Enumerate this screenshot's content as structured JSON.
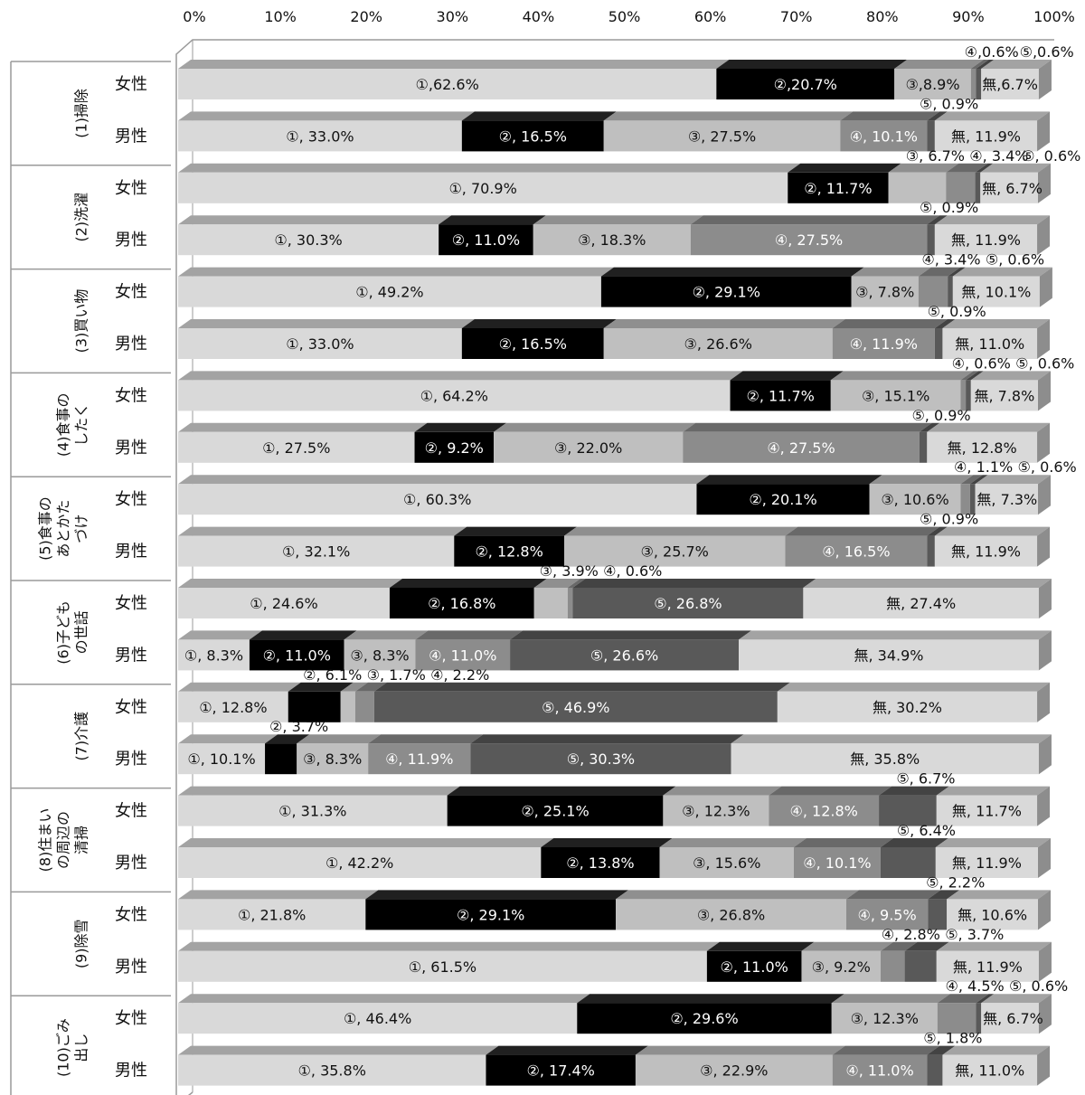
{
  "chart_data": {
    "type": "bar",
    "stacked": "100%",
    "orientation": "horizontal",
    "x_ticks": [
      "0%",
      "10%",
      "20%",
      "30%",
      "40%",
      "50%",
      "60%",
      "70%",
      "80%",
      "90%",
      "100%"
    ],
    "xlim": [
      0,
      100
    ],
    "grid": false,
    "legend": "none",
    "segment_keys": [
      "①",
      "②",
      "③",
      "④",
      "⑤",
      "無"
    ],
    "colors": {
      "①": "#d9d9d9",
      "②": "#000000",
      "③": "#bfbfbf",
      "④": "#8c8c8c",
      "⑤": "#595959",
      "無": "#d9d9d9"
    },
    "categories": [
      {
        "name": "(1)掃除",
        "rows": [
          {
            "gender": "女性",
            "values": [
              62.6,
              20.7,
              8.9,
              0.6,
              0.6,
              6.7
            ],
            "labels": [
              "①,62.6%",
              "②,20.7%",
              "③,8.9%",
              "④,0.6%",
              "⑤,0.6%",
              "無,6.7%"
            ]
          },
          {
            "gender": "男性",
            "values": [
              33.0,
              16.5,
              27.5,
              10.1,
              0.9,
              11.9
            ],
            "labels": [
              "①, 33.0%",
              "②, 16.5%",
              "③, 27.5%",
              "④, 10.1%",
              "⑤, 0.9%",
              "無, 11.9%"
            ]
          }
        ]
      },
      {
        "name": "(2)洗濯",
        "rows": [
          {
            "gender": "女性",
            "values": [
              70.9,
              11.7,
              6.7,
              3.4,
              0.6,
              6.7
            ],
            "labels": [
              "①, 70.9%",
              "②, 11.7%",
              "③, 6.7%",
              "④, 3.4%",
              "⑤, 0.6%",
              "無, 6.7%"
            ]
          },
          {
            "gender": "男性",
            "values": [
              30.3,
              11.0,
              18.3,
              27.5,
              0.9,
              11.9
            ],
            "labels": [
              "①, 30.3%",
              "②, 11.0%",
              "③, 18.3%",
              "④, 27.5%",
              "⑤, 0.9%",
              "無, 11.9%"
            ]
          }
        ]
      },
      {
        "name": "(3)買い物",
        "rows": [
          {
            "gender": "女性",
            "values": [
              49.2,
              29.1,
              7.8,
              3.4,
              0.6,
              10.1
            ],
            "labels": [
              "①, 49.2%",
              "②, 29.1%",
              "③, 7.8%",
              "④, 3.4%",
              "⑤, 0.6%",
              "無, 10.1%"
            ]
          },
          {
            "gender": "男性",
            "values": [
              33.0,
              16.5,
              26.6,
              11.9,
              0.9,
              11.0
            ],
            "labels": [
              "①, 33.0%",
              "②, 16.5%",
              "③, 26.6%",
              "④, 11.9%",
              "⑤, 0.9%",
              "無, 11.0%"
            ]
          }
        ]
      },
      {
        "name": "(4)食事の\nしたく",
        "rows": [
          {
            "gender": "女性",
            "values": [
              64.2,
              11.7,
              15.1,
              0.6,
              0.6,
              7.8
            ],
            "labels": [
              "①, 64.2%",
              "②, 11.7%",
              "③, 15.1%",
              "④, 0.6%",
              "⑤, 0.6%",
              "無, 7.8%"
            ]
          },
          {
            "gender": "男性",
            "values": [
              27.5,
              9.2,
              22.0,
              27.5,
              0.9,
              12.8
            ],
            "labels": [
              "①, 27.5%",
              "②, 9.2%",
              "③, 22.0%",
              "④, 27.5%",
              "⑤, 0.9%",
              "無, 12.8%"
            ]
          }
        ]
      },
      {
        "name": "(5)食事の\nあとかた\nづけ",
        "rows": [
          {
            "gender": "女性",
            "values": [
              60.3,
              20.1,
              10.6,
              1.1,
              0.6,
              7.3
            ],
            "labels": [
              "①, 60.3%",
              "②, 20.1%",
              "③, 10.6%",
              "④, 1.1%",
              "⑤, 0.6%",
              "無, 7.3%"
            ]
          },
          {
            "gender": "男性",
            "values": [
              32.1,
              12.8,
              25.7,
              16.5,
              0.9,
              11.9
            ],
            "labels": [
              "①, 32.1%",
              "②, 12.8%",
              "③, 25.7%",
              "④, 16.5%",
              "⑤, 0.9%",
              "無, 11.9%"
            ]
          }
        ]
      },
      {
        "name": "(6)子ども\nの世話",
        "rows": [
          {
            "gender": "女性",
            "values": [
              24.6,
              16.8,
              3.9,
              0.6,
              26.8,
              27.4
            ],
            "labels": [
              "①, 24.6%",
              "②, 16.8%",
              "③, 3.9%",
              "④, 0.6%",
              "⑤, 26.8%",
              "無, 27.4%"
            ]
          },
          {
            "gender": "男性",
            "values": [
              8.3,
              11.0,
              8.3,
              11.0,
              26.6,
              34.9
            ],
            "labels": [
              "①, 8.3%",
              "②, 11.0%",
              "③, 8.3%",
              "④, 11.0%",
              "⑤, 26.6%",
              "無, 34.9%"
            ]
          }
        ]
      },
      {
        "name": "(7)介護",
        "rows": [
          {
            "gender": "女性",
            "values": [
              12.8,
              6.1,
              1.7,
              2.2,
              46.9,
              30.2
            ],
            "labels": [
              "①, 12.8%",
              "②, 6.1%",
              "③, 1.7%",
              "④, 2.2%",
              "⑤, 46.9%",
              "無, 30.2%"
            ]
          },
          {
            "gender": "男性",
            "values": [
              10.1,
              3.7,
              8.3,
              11.9,
              30.3,
              35.8
            ],
            "labels": [
              "①, 10.1%",
              "②, 3.7%",
              "③, 8.3%",
              "④, 11.9%",
              "⑤, 30.3%",
              "無, 35.8%"
            ]
          }
        ]
      },
      {
        "name": "(8)住まい\nの周辺の\n清掃",
        "rows": [
          {
            "gender": "女性",
            "values": [
              31.3,
              25.1,
              12.3,
              12.8,
              6.7,
              11.7
            ],
            "labels": [
              "①, 31.3%",
              "②, 25.1%",
              "③, 12.3%",
              "④, 12.8%",
              "⑤, 6.7%",
              "無, 11.7%"
            ]
          },
          {
            "gender": "男性",
            "values": [
              42.2,
              13.8,
              15.6,
              10.1,
              6.4,
              11.9
            ],
            "labels": [
              "①, 42.2%",
              "②, 13.8%",
              "③, 15.6%",
              "④, 10.1%",
              "⑤, 6.4%",
              "無, 11.9%"
            ]
          }
        ]
      },
      {
        "name": "(9)除雪",
        "rows": [
          {
            "gender": "女性",
            "values": [
              21.8,
              29.1,
              26.8,
              9.5,
              2.2,
              10.6
            ],
            "labels": [
              "①, 21.8%",
              "②, 29.1%",
              "③, 26.8%",
              "④, 9.5%",
              "⑤, 2.2%",
              "無, 10.6%"
            ]
          },
          {
            "gender": "男性",
            "values": [
              61.5,
              11.0,
              9.2,
              2.8,
              3.7,
              11.9
            ],
            "labels": [
              "①, 61.5%",
              "②, 11.0%",
              "③, 9.2%",
              "④, 2.8%",
              "⑤, 3.7%",
              "無, 11.9%"
            ]
          }
        ]
      },
      {
        "name": "(10)ごみ\n出し",
        "rows": [
          {
            "gender": "女性",
            "values": [
              46.4,
              29.6,
              12.3,
              4.5,
              0.6,
              6.7
            ],
            "labels": [
              "①, 46.4%",
              "②, 29.6%",
              "③, 12.3%",
              "④, 4.5%",
              "⑤, 0.6%",
              "無, 6.7%"
            ]
          },
          {
            "gender": "男性",
            "values": [
              35.8,
              17.4,
              22.9,
              11.0,
              1.8,
              11.0
            ],
            "labels": [
              "①, 35.8%",
              "②, 17.4%",
              "③, 22.9%",
              "④, 11.0%",
              "⑤, 1.8%",
              "無, 11.0%"
            ]
          }
        ]
      }
    ]
  }
}
